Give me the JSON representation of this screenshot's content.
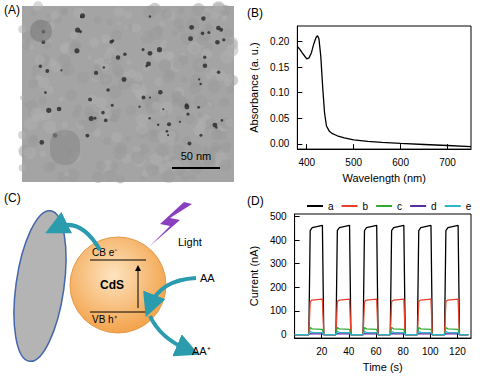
{
  "image_panel": {
    "label": "(A)",
    "scale_bar": "50 nm"
  },
  "diagram": {
    "label": "(C)",
    "particle": "CdS",
    "conduction_band": "CB e⁻",
    "valence_band": "VB h⁺",
    "light": "Light",
    "donor": "AA",
    "donor_oxidized": "AA⁺"
  },
  "chart_data": [
    {
      "type": "line",
      "title": "(B)",
      "x_label": "Wavelength (nm)",
      "y_label": "Absorbance (a. u.)",
      "x": [
        380,
        385,
        390,
        395,
        400,
        405,
        410,
        415,
        420,
        423,
        426,
        430,
        434,
        438,
        442,
        448,
        455,
        465,
        480,
        500,
        530,
        560,
        600,
        650,
        700,
        750
      ],
      "values": [
        0.19,
        0.185,
        0.178,
        0.172,
        0.166,
        0.168,
        0.178,
        0.195,
        0.208,
        0.211,
        0.205,
        0.17,
        0.11,
        0.06,
        0.035,
        0.025,
        0.02,
        0.016,
        0.012,
        0.008,
        0.005,
        0.003,
        0.001,
        -0.001,
        -0.003,
        -0.005
      ],
      "color": "#000000",
      "xlim": [
        380,
        750
      ],
      "xticks": [
        400,
        500,
        600,
        700
      ],
      "ylim": [
        -0.01,
        0.23
      ],
      "yticks": [
        {
          "value": 0,
          "label": "0.00"
        },
        {
          "value": 0.05,
          "label": "0.05"
        },
        {
          "value": 0.1,
          "label": "0.10"
        },
        {
          "value": 0.15,
          "label": "0.15"
        },
        {
          "value": 0.2,
          "label": "0.20"
        }
      ],
      "grid": false
    },
    {
      "type": "line",
      "title": "(D)",
      "x_label": "Time (s)",
      "y_label": "Current (nA)",
      "x": [
        0,
        10.5,
        11.5,
        13,
        20.5,
        21.5,
        30.5,
        31.5,
        33,
        40.5,
        41.5,
        50.5,
        51.5,
        53,
        60.5,
        61.5,
        70.5,
        71.5,
        73,
        80.5,
        81.5,
        90.5,
        91.5,
        93,
        100.5,
        101.5,
        110.5,
        111.5,
        113,
        120.5,
        121.5,
        128
      ],
      "series": [
        {
          "name": "a",
          "color": "#000000",
          "values": [
            0,
            0,
            440,
            452,
            462,
            0,
            0,
            440,
            452,
            462,
            0,
            0,
            440,
            452,
            462,
            0,
            0,
            440,
            452,
            462,
            0,
            0,
            440,
            452,
            462,
            0,
            0,
            440,
            452,
            462,
            0,
            0
          ]
        },
        {
          "name": "b",
          "color": "#e8402a",
          "values": [
            0,
            0,
            140,
            146,
            150,
            0,
            0,
            140,
            146,
            150,
            0,
            0,
            140,
            146,
            150,
            0,
            0,
            140,
            146,
            150,
            0,
            0,
            140,
            146,
            150,
            0,
            0,
            140,
            146,
            150,
            0,
            0
          ]
        },
        {
          "name": "c",
          "color": "#33aa33",
          "values": [
            0,
            0,
            30,
            24,
            22,
            0,
            0,
            30,
            24,
            22,
            0,
            0,
            30,
            24,
            22,
            0,
            0,
            30,
            24,
            22,
            0,
            0,
            30,
            24,
            22,
            0,
            0,
            30,
            24,
            22,
            0,
            0
          ]
        },
        {
          "name": "d",
          "color": "#5b2d9e",
          "values": [
            0,
            0,
            4,
            3,
            3,
            0,
            0,
            4,
            3,
            3,
            0,
            0,
            4,
            3,
            3,
            0,
            0,
            4,
            3,
            3,
            0,
            0,
            4,
            3,
            3,
            0,
            0,
            4,
            3,
            3,
            0,
            0
          ]
        },
        {
          "name": "e",
          "color": "#2bb5c9",
          "values": [
            0,
            0,
            12,
            9,
            8,
            0,
            0,
            12,
            9,
            8,
            0,
            0,
            12,
            9,
            8,
            0,
            0,
            12,
            9,
            8,
            0,
            0,
            12,
            9,
            8,
            0,
            0,
            12,
            9,
            8,
            0,
            0
          ]
        }
      ],
      "xlim": [
        0,
        130
      ],
      "xticks": [
        20,
        40,
        60,
        80,
        100,
        120
      ],
      "ylim": [
        -15,
        510
      ],
      "yticks": [
        0,
        100,
        200,
        300,
        400,
        500
      ],
      "legend": "top",
      "grid": false
    }
  ]
}
